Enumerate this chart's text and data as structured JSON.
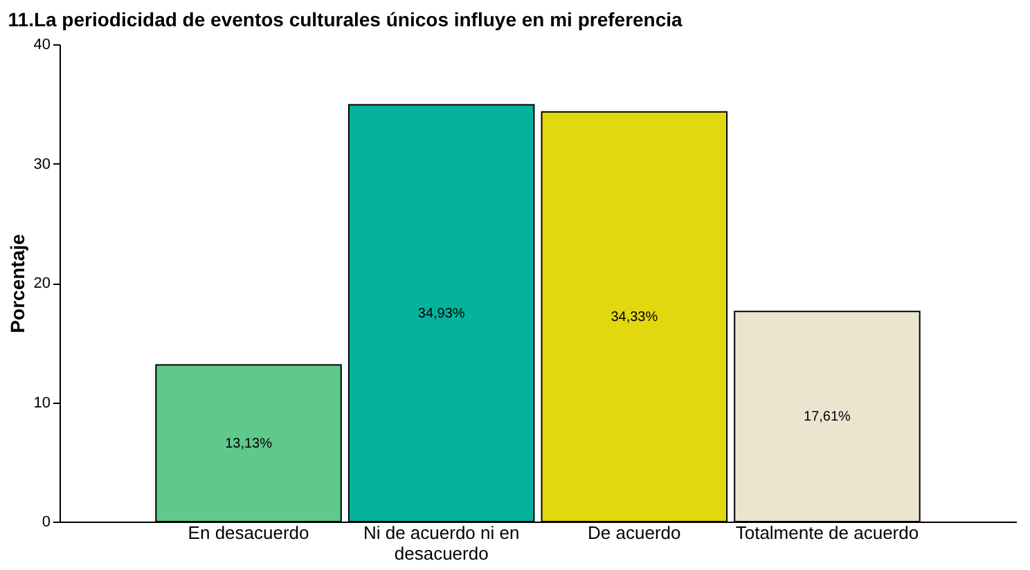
{
  "chart_data": {
    "type": "bar",
    "title": "11.La periodicidad de eventos culturales únicos influye en mi preferencia",
    "ylabel": "Porcentaje",
    "categories": [
      "En desacuerdo",
      "Ni de acuerdo ni en desacuerdo",
      "De acuerdo",
      "Totalmente de acuerdo"
    ],
    "values": [
      13.13,
      34.93,
      34.33,
      17.61
    ],
    "colors": [
      "#5ec98a",
      "#05b39c",
      "#e2d80f",
      "#ebe5d0"
    ],
    "value_labels": [
      "13,13%",
      "34,93%",
      "34,33%",
      "17,61%"
    ],
    "ylim": [
      0,
      40
    ],
    "yticks": [
      0,
      10,
      20,
      30,
      40
    ],
    "grid": false
  }
}
